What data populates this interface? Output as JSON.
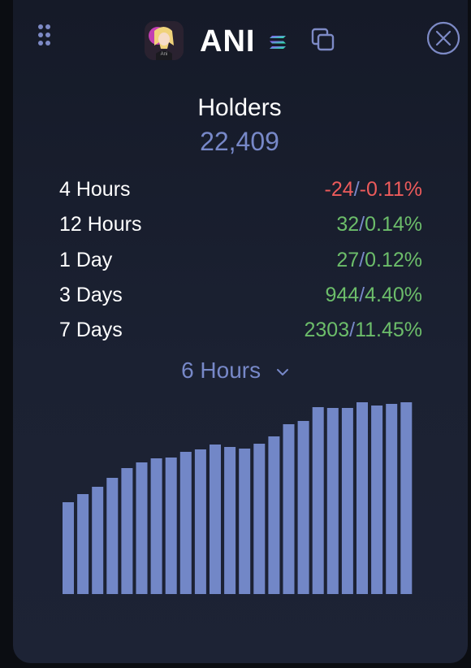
{
  "header": {
    "token_name": "ANI",
    "avatar_caption": "Ani"
  },
  "holders": {
    "title": "Holders",
    "count": "22,409"
  },
  "stats": [
    {
      "label": "4 Hours",
      "change": "-24",
      "percent": "-0.11%",
      "trend": "down"
    },
    {
      "label": "12 Hours",
      "change": "32",
      "percent": "0.14%",
      "trend": "up"
    },
    {
      "label": "1 Day",
      "change": "27",
      "percent": "0.12%",
      "trend": "up"
    },
    {
      "label": "3 Days",
      "change": "944",
      "percent": "4.40%",
      "trend": "up"
    },
    {
      "label": "7 Days",
      "change": "2303",
      "percent": "11.45%",
      "trend": "up"
    }
  ],
  "range_selector": {
    "selected": "6 Hours"
  },
  "colors": {
    "accent": "#7788c8",
    "bar": "#7287c7",
    "positive": "#6cbd6a",
    "negative": "#ec5b5b",
    "background": "#1b2132"
  },
  "icons": {
    "grip": "drag-handle-icon",
    "chain": "solana-icon",
    "copy": "copy-icon",
    "close": "close-icon",
    "dropdown": "chevron-down-icon"
  },
  "chart_data": {
    "type": "bar",
    "title": "",
    "xlabel": "",
    "ylabel": "",
    "ylim": [
      0,
      240
    ],
    "values": [
      113,
      123,
      132,
      143,
      155,
      162,
      167,
      168,
      175,
      178,
      184,
      181,
      179,
      185,
      194,
      209,
      213,
      230,
      229,
      229,
      236,
      232,
      234,
      236
    ]
  }
}
